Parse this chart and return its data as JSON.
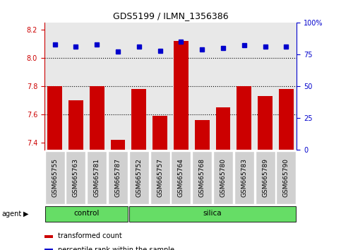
{
  "title": "GDS5199 / ILMN_1356386",
  "samples": [
    "GSM665755",
    "GSM665763",
    "GSM665781",
    "GSM665787",
    "GSM665752",
    "GSM665757",
    "GSM665764",
    "GSM665768",
    "GSM665780",
    "GSM665783",
    "GSM665789",
    "GSM665790"
  ],
  "groups": [
    "control",
    "control",
    "control",
    "control",
    "silica",
    "silica",
    "silica",
    "silica",
    "silica",
    "silica",
    "silica",
    "silica"
  ],
  "transformed_count": [
    7.8,
    7.7,
    7.8,
    7.42,
    7.78,
    7.59,
    8.12,
    7.56,
    7.65,
    7.8,
    7.73,
    7.78
  ],
  "percentile_rank": [
    83,
    81,
    83,
    77,
    81,
    78,
    85,
    79,
    80,
    82,
    81,
    81
  ],
  "ylim_left": [
    7.35,
    8.25
  ],
  "ylim_right": [
    0,
    100
  ],
  "yticks_left": [
    7.4,
    7.6,
    7.8,
    8.0,
    8.2
  ],
  "yticks_right": [
    0,
    25,
    50,
    75,
    100
  ],
  "bar_color": "#cc0000",
  "dot_color": "#0000cc",
  "background_plot": "#e8e8e8",
  "background_label": "#d0d0d0",
  "control_color": "#66dd66",
  "silica_color": "#66dd66",
  "dotted_line_color": "black",
  "left_axis_color": "#cc0000",
  "right_axis_color": "#0000cc",
  "legend_items": [
    "transformed count",
    "percentile rank within the sample"
  ],
  "white_bg": "#ffffff"
}
